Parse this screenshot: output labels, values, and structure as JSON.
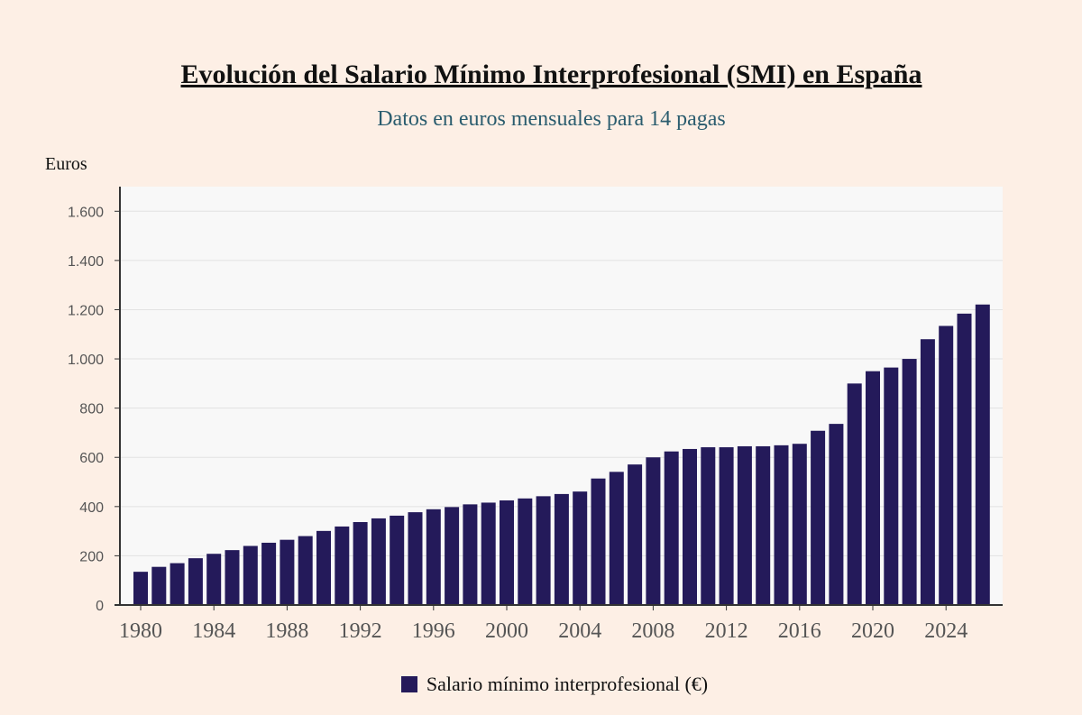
{
  "chart_data": {
    "type": "bar",
    "title": "Evolución del Salario Mínimo Interprofesional (SMI) en España",
    "subtitle": "Datos en euros mensuales para 14 pagas",
    "ylabel": "Euros",
    "xlabel": "",
    "ylim": [
      0,
      1700
    ],
    "yticks": [
      0,
      200,
      400,
      600,
      800,
      1000,
      1200,
      1400,
      1600
    ],
    "ytick_labels": [
      "0",
      "200",
      "400",
      "600",
      "800",
      "1.000",
      "1.200",
      "1.400",
      "1.600"
    ],
    "xtick_labels": [
      "1980",
      "1984",
      "1988",
      "1992",
      "1996",
      "2000",
      "2004",
      "2008",
      "2012",
      "2016",
      "2020",
      "2024"
    ],
    "grid": true,
    "legend_position": "bottom",
    "bar_color": "#241a5a",
    "series": [
      {
        "name": "Salario mínimo interprofesional (€)",
        "years": [
          1980,
          1981,
          1982,
          1983,
          1984,
          1985,
          1986,
          1987,
          1988,
          1989,
          1990,
          1991,
          1992,
          1993,
          1994,
          1995,
          1996,
          1997,
          1998,
          1999,
          2000,
          2001,
          2002,
          2003,
          2004,
          2005,
          2006,
          2007,
          2008,
          2009,
          2010,
          2011,
          2012,
          2013,
          2014,
          2015,
          2016,
          2017,
          2018,
          2019,
          2020,
          2021,
          2022,
          2023,
          2024,
          2025,
          2026
        ],
        "values": [
          135,
          155,
          170,
          190,
          208,
          223,
          240,
          253,
          265,
          280,
          301,
          319,
          337,
          352,
          363,
          377,
          389,
          398,
          409,
          416,
          425,
          433,
          442,
          451,
          461,
          514,
          541,
          571,
          600,
          624,
          634,
          641,
          641,
          645,
          645,
          649,
          655,
          708,
          736,
          900,
          950,
          965,
          1000,
          1080,
          1134,
          1184,
          1221
        ]
      }
    ]
  }
}
